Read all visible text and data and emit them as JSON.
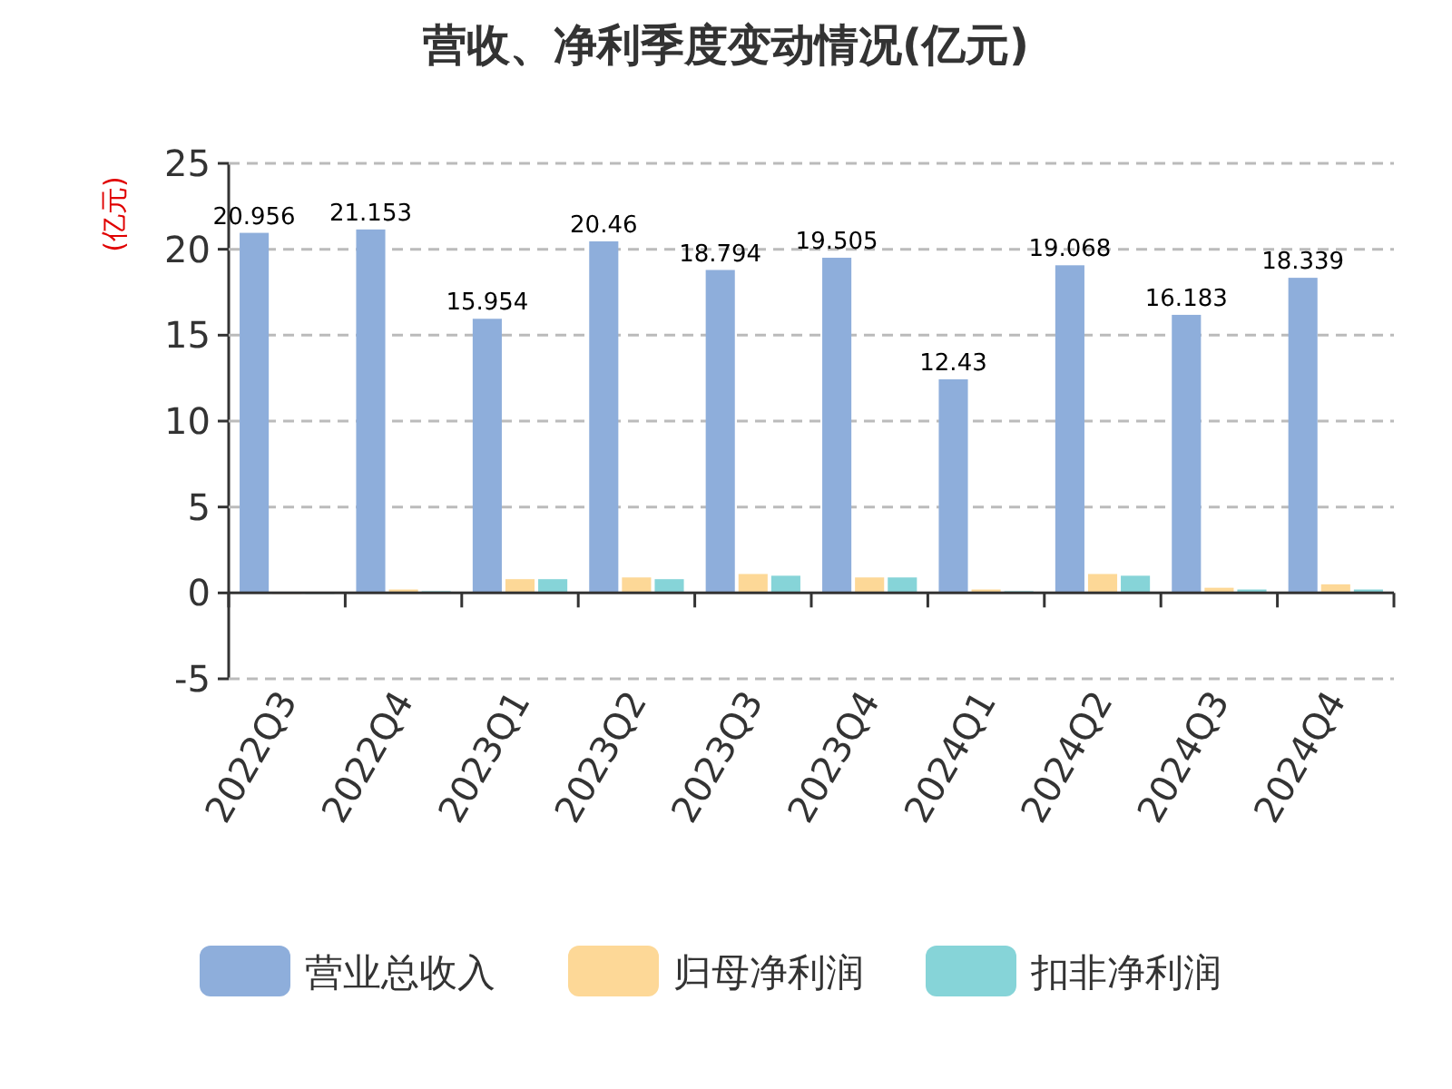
{
  "chart_data": {
    "type": "bar",
    "title": "营收、净利季度变动情况(亿元)",
    "ylabel": "(亿元)",
    "categories": [
      "2022Q3",
      "2022Q4",
      "2023Q1",
      "2023Q2",
      "2023Q3",
      "2023Q4",
      "2024Q1",
      "2024Q2",
      "2024Q3",
      "2024Q4"
    ],
    "series": [
      {
        "name": "营业总收入",
        "color": "#8eaedb",
        "values": [
          20.956,
          21.153,
          15.954,
          20.46,
          18.794,
          19.505,
          12.43,
          19.068,
          16.183,
          18.339
        ],
        "value_labels": [
          "20.956",
          "21.153",
          "15.954",
          "20.46",
          "18.794",
          "19.505",
          "12.43",
          "19.068",
          "16.183",
          "18.339"
        ]
      },
      {
        "name": "归母净利润",
        "color": "#fdd897",
        "values": [
          0,
          0.2,
          0.8,
          0.9,
          1.1,
          0.9,
          0.2,
          1.1,
          0.3,
          0.5
        ]
      },
      {
        "name": "扣非净利润",
        "color": "#86d4d8",
        "values": [
          0,
          0.1,
          0.8,
          0.8,
          1,
          0.9,
          0.1,
          1,
          0.2,
          0.2
        ]
      }
    ],
    "ylim": [
      -5,
      25
    ],
    "yticks": [
      -5,
      0,
      5,
      10,
      15,
      20,
      25
    ],
    "grid": "y",
    "legend": "bottom"
  }
}
